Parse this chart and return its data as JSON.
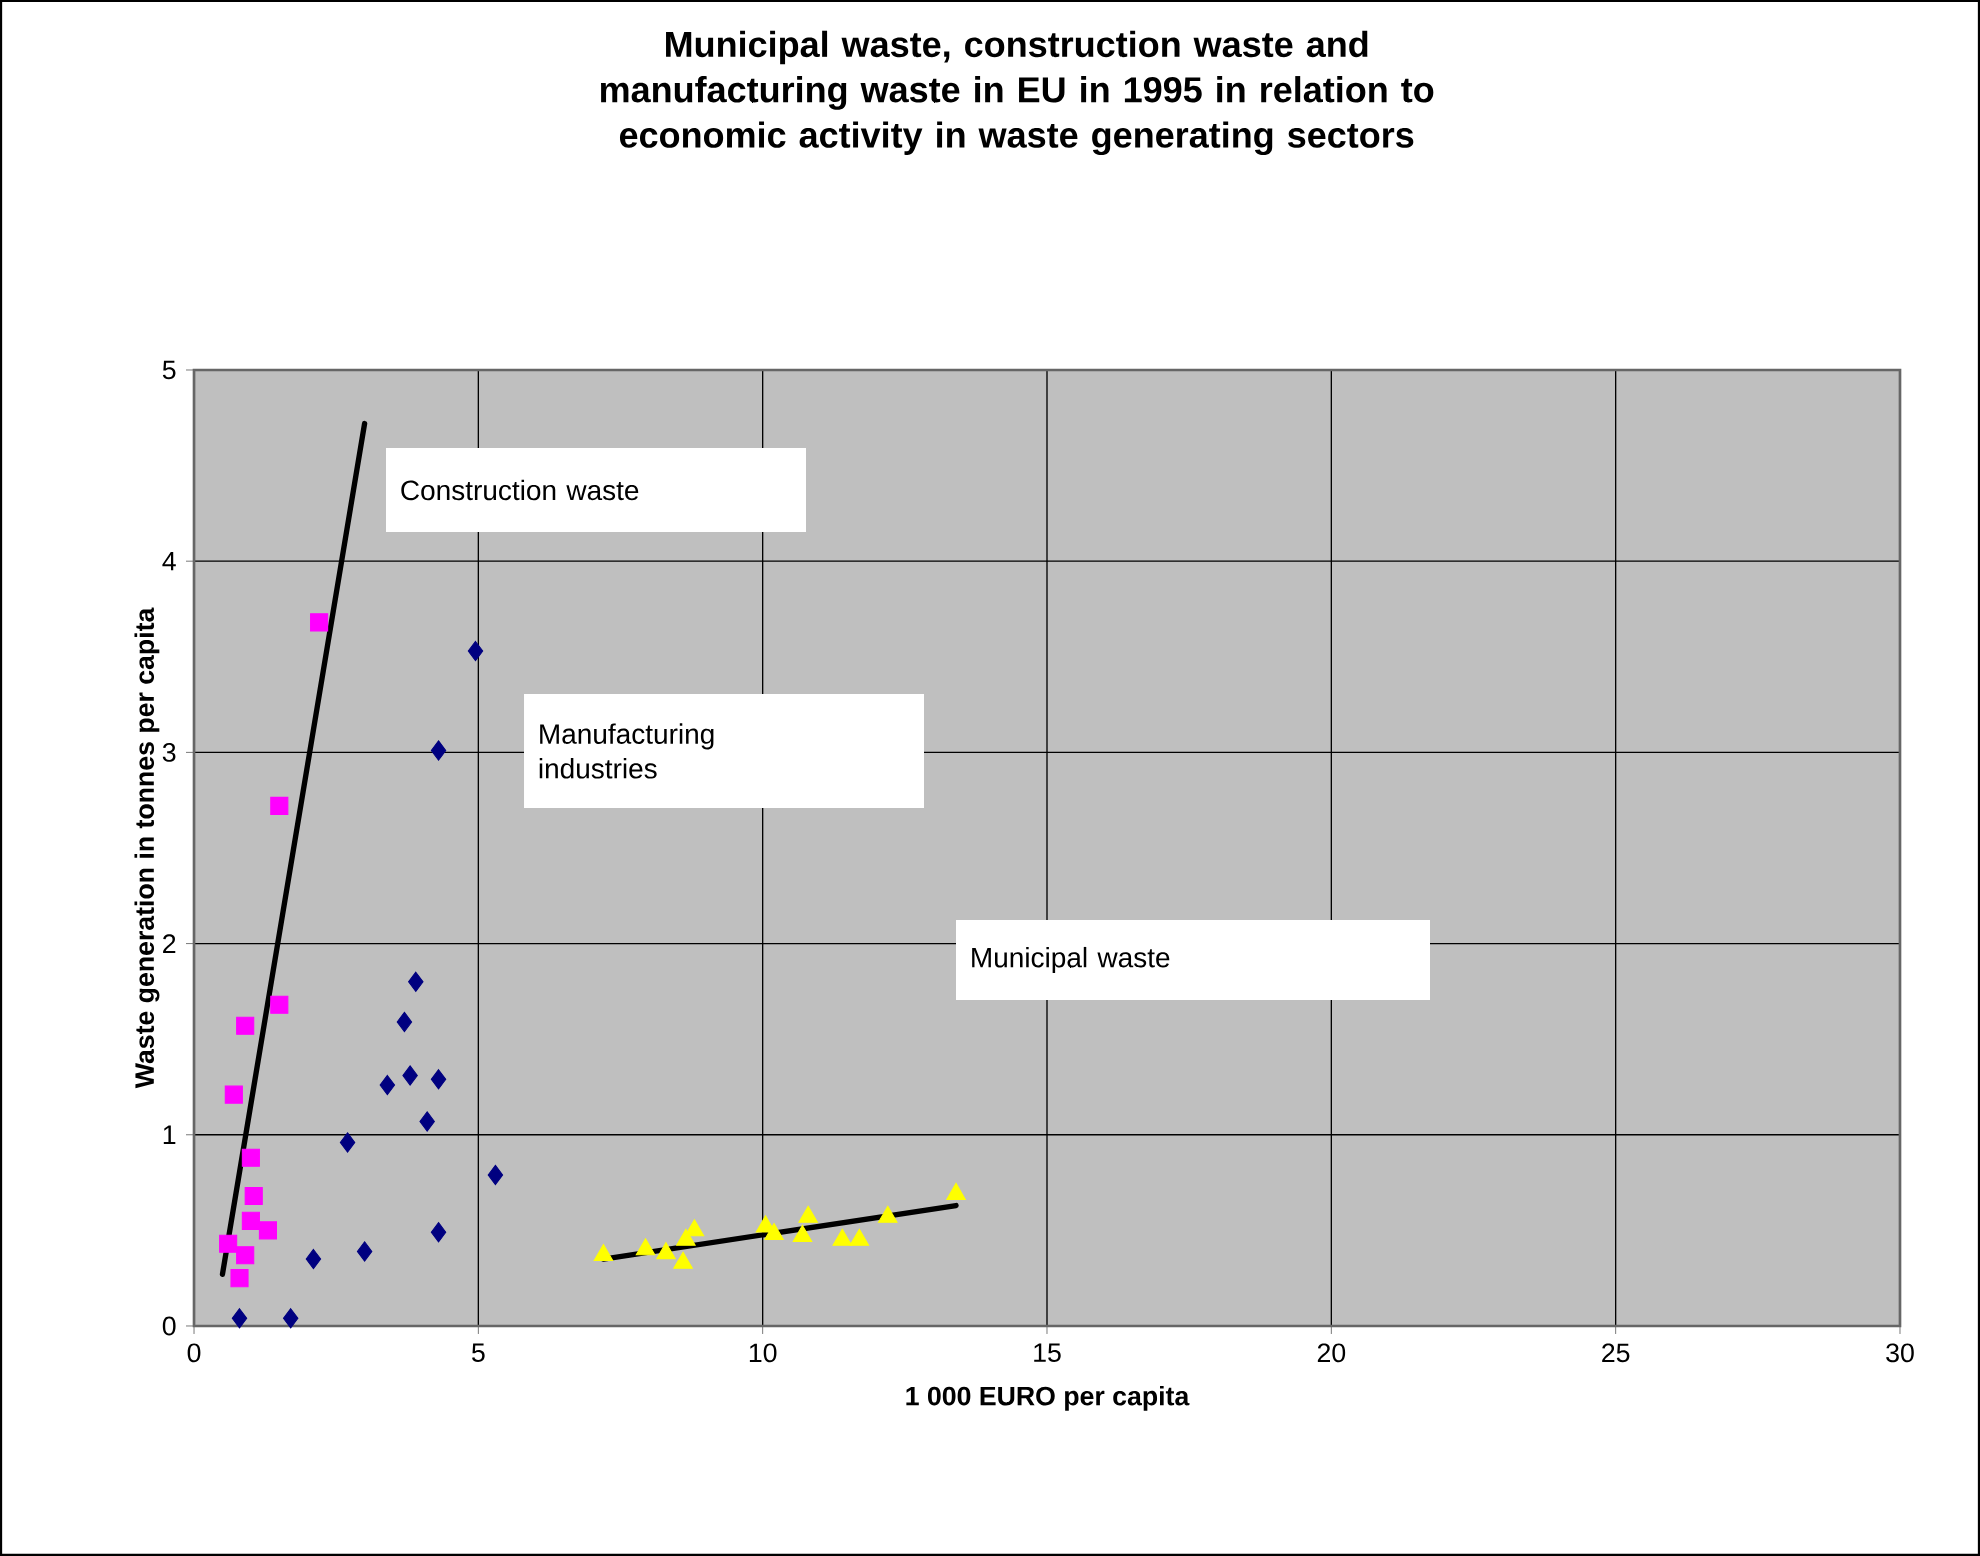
{
  "chart_data": {
    "type": "scatter",
    "title": "Municipal waste, construction waste and manufacturing waste  in EU in 1995 in relation to economic activity in waste generating sectors",
    "xlabel": "1 000 EURO per capita",
    "ylabel": "Waste generation in tonnes per capita",
    "xlim": [
      0,
      30
    ],
    "ylim": [
      0,
      5
    ],
    "xticks": [
      0,
      5,
      10,
      15,
      20,
      25,
      30
    ],
    "yticks": [
      0,
      1,
      2,
      3,
      4,
      5
    ],
    "grid": true,
    "series": [
      {
        "marker": "diamond",
        "color": "#000080",
        "x": [
          4.95,
          4.3,
          3.9,
          3.7,
          3.8,
          3.4,
          4.3,
          4.1,
          2.7,
          5.3,
          4.3,
          3.0,
          2.1,
          0.8,
          1.7
        ],
        "values": [
          3.53,
          3.01,
          1.8,
          1.59,
          1.31,
          1.26,
          1.29,
          1.07,
          0.96,
          0.79,
          0.49,
          0.39,
          0.35,
          0.04,
          0.04
        ]
      },
      {
        "marker": "square",
        "color": "#ff00ff",
        "x": [
          2.2,
          1.5,
          1.5,
          0.9,
          0.7,
          1.0,
          1.05,
          1.3,
          0.6,
          0.9,
          0.8,
          1.0
        ],
        "values": [
          3.68,
          2.72,
          1.68,
          1.57,
          1.21,
          0.88,
          0.68,
          0.5,
          0.43,
          0.37,
          0.25,
          0.55
        ]
      },
      {
        "marker": "triangle",
        "color": "#ffff00",
        "x": [
          7.2,
          7.94,
          8.3,
          8.65,
          8.8,
          8.6,
          10.05,
          10.2,
          10.8,
          10.7,
          11.4,
          11.7,
          12.2,
          13.4
        ],
        "values": [
          0.37,
          0.4,
          0.38,
          0.45,
          0.5,
          0.33,
          0.52,
          0.48,
          0.57,
          0.47,
          0.45,
          0.45,
          0.57,
          0.69
        ]
      },
      {
        "type": "line",
        "marker": "none",
        "color": "#000000",
        "x": [
          0.5,
          3.0
        ],
        "values": [
          0.27,
          4.72
        ]
      },
      {
        "type": "line",
        "marker": "none",
        "color": "#000000",
        "x": [
          7.2,
          13.4
        ],
        "values": [
          0.35,
          0.63
        ]
      }
    ],
    "annotations": [
      "Construction waste",
      "Manufacturing industries",
      "Municipal waste"
    ]
  }
}
